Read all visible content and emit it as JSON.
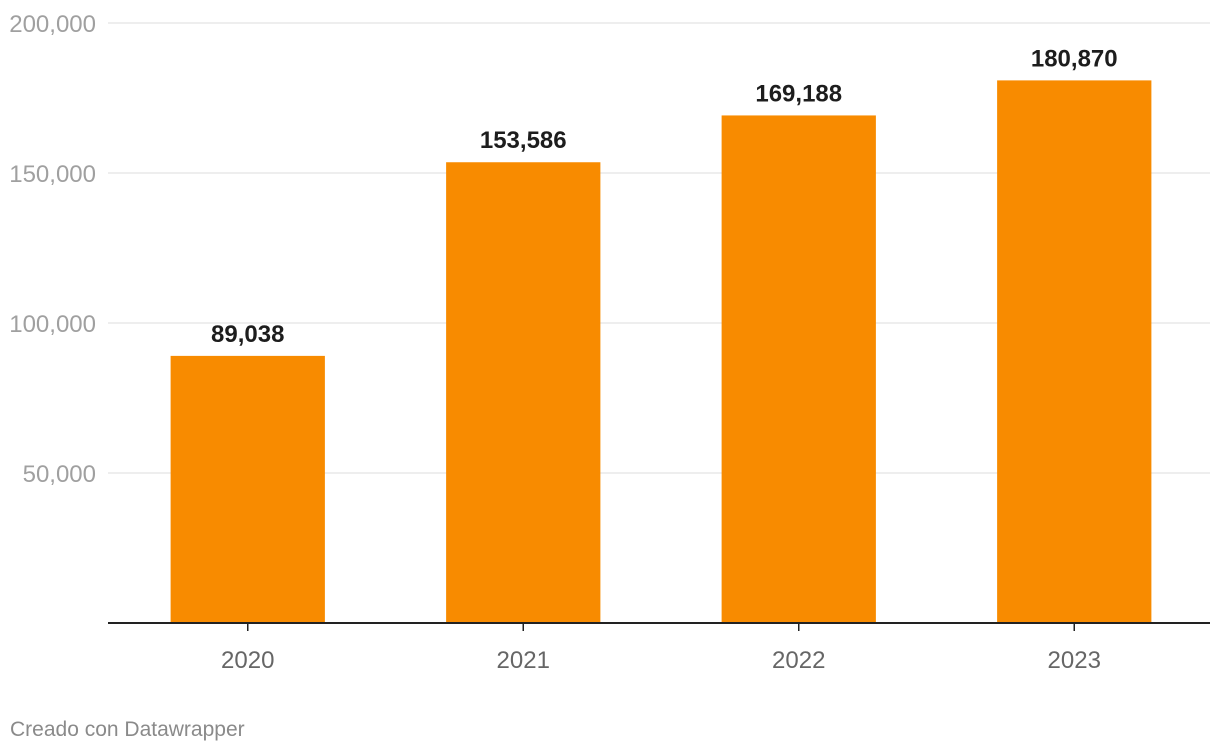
{
  "chart_data": {
    "type": "bar",
    "categories": [
      "2020",
      "2021",
      "2022",
      "2023"
    ],
    "values": [
      89038,
      153586,
      169188,
      180870
    ],
    "data_labels": [
      "89,038",
      "153,586",
      "169,188",
      "180,870"
    ],
    "yticks": [
      0,
      50000,
      100000,
      150000,
      200000
    ],
    "ytick_labels": [
      "",
      "50,000",
      "100,000",
      "150,000",
      "200,000"
    ],
    "ylim": [
      0,
      200000
    ],
    "title": "",
    "xlabel": "",
    "ylabel": "",
    "grid": true,
    "legend": "none",
    "colors": {
      "bar": "#f88b00",
      "grid": "#dcdcdc",
      "axis": "#222222",
      "tick_label": "#a0a0a0",
      "category_label": "#666666",
      "data_label": "#1d1d1d"
    }
  },
  "footer": {
    "credit": "Creado con Datawrapper"
  }
}
